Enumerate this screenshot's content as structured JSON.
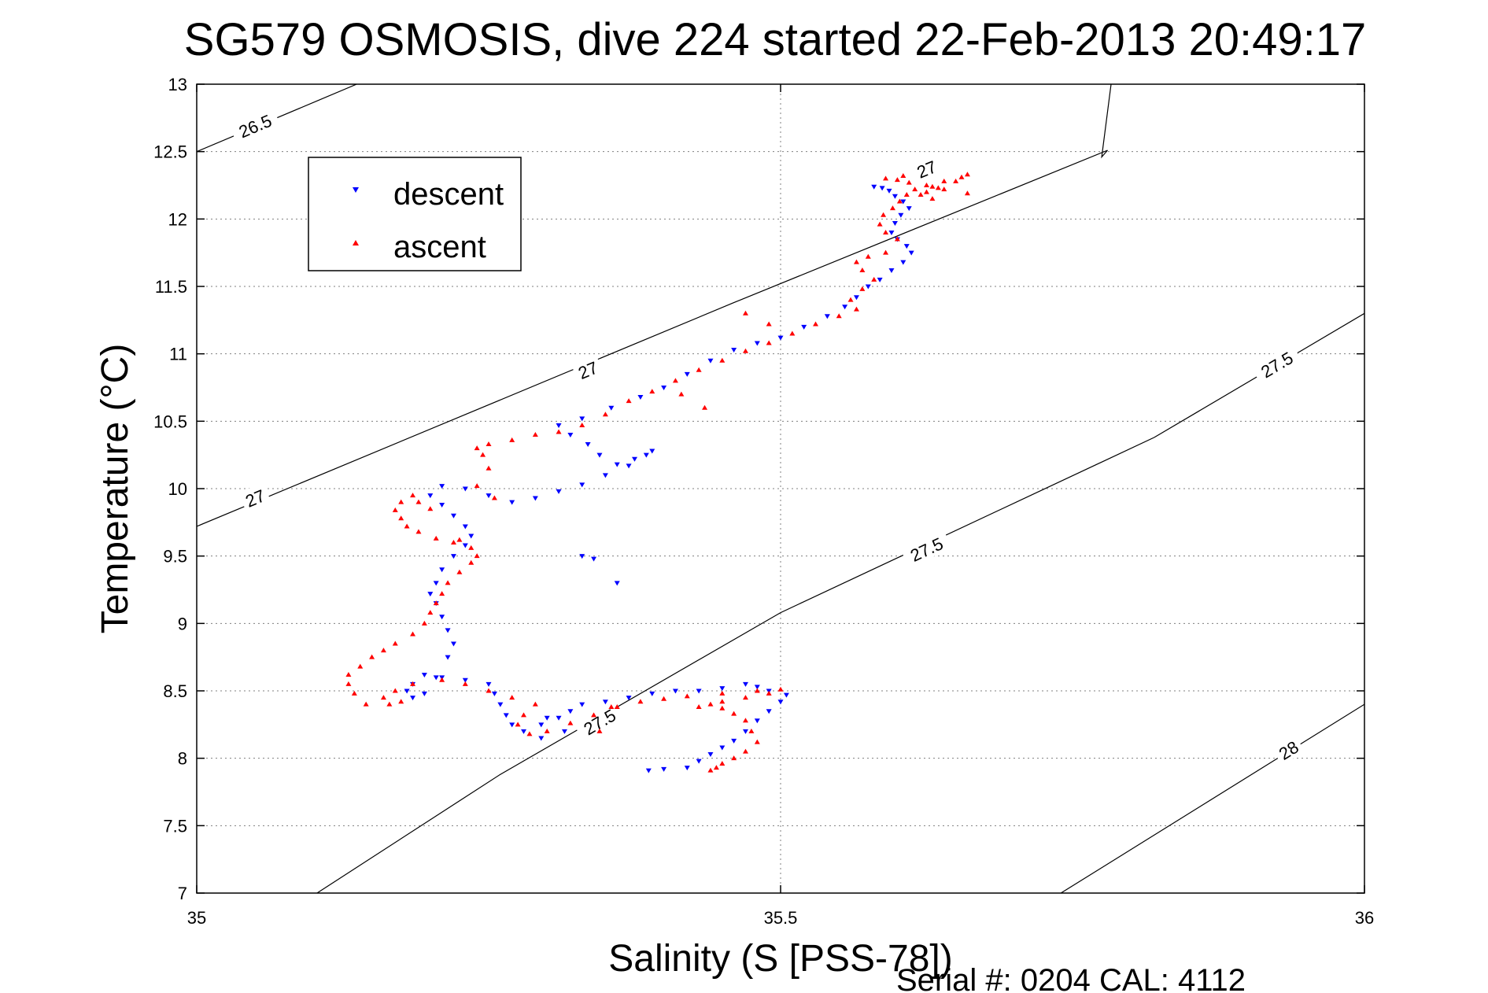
{
  "chart_data": {
    "type": "scatter",
    "title": "SG579 OSMOSIS, dive 224 started 22-Feb-2013 20:49:17",
    "xlabel": "Salinity (S [PSS-78])",
    "ylabel": "Temperature (°C)",
    "xlim": [
      35,
      36
    ],
    "ylim": [
      7,
      13
    ],
    "xticks": [
      35,
      35.5,
      36
    ],
    "xtick_labels": [
      "35",
      "35.5",
      "36"
    ],
    "yticks": [
      7,
      7.5,
      8,
      8.5,
      9,
      9.5,
      10,
      10.5,
      11,
      11.5,
      12,
      12.5,
      13
    ],
    "ytick_labels": [
      "7",
      "7.5",
      "8",
      "8.5",
      "9",
      "9.5",
      "10",
      "10.5",
      "11",
      "11.5",
      "12",
      "12.5",
      "13"
    ],
    "grid": true,
    "legend_position": "top-left",
    "colors": {
      "descent": "#0000ff",
      "ascent": "#ff0000",
      "contour": "#000000",
      "grid": "#7f7f7f"
    },
    "footer": "Serial #: 0204  CAL: 4112",
    "contours": [
      {
        "level": "26.5",
        "points": [
          [
            35.0,
            12.5
          ],
          [
            35.137,
            13.0
          ]
        ],
        "labels": [
          {
            "x": 35.05,
            "y": 12.69,
            "text": "26.5"
          }
        ]
      },
      {
        "level": "27",
        "points": [
          [
            35.0,
            9.72
          ],
          [
            35.46,
            11.38
          ],
          [
            35.78,
            12.51
          ],
          [
            35.775,
            12.46
          ],
          [
            35.783,
            13.0
          ]
        ],
        "labels": [
          {
            "x": 35.05,
            "y": 9.93,
            "text": "27"
          },
          {
            "x": 35.335,
            "y": 10.88,
            "text": "27"
          },
          {
            "x": 35.625,
            "y": 12.37,
            "text": "27"
          }
        ]
      },
      {
        "level": "27.5",
        "points": [
          [
            35.103,
            7.0
          ],
          [
            35.26,
            7.88
          ],
          [
            35.5,
            9.08
          ],
          [
            35.82,
            10.38
          ],
          [
            36.0,
            11.3
          ]
        ],
        "labels": [
          {
            "x": 35.345,
            "y": 8.27,
            "text": "27.5"
          },
          {
            "x": 35.625,
            "y": 9.55,
            "text": "27.5"
          },
          {
            "x": 35.925,
            "y": 10.92,
            "text": "27.5"
          }
        ]
      },
      {
        "level": "28",
        "points": [
          [
            35.74,
            7.0
          ],
          [
            36.0,
            8.4
          ]
        ],
        "labels": [
          {
            "x": 35.935,
            "y": 8.06,
            "text": "28"
          }
        ]
      }
    ],
    "series": [
      {
        "name": "descent",
        "marker": "triangle-down",
        "points": [
          [
            35.387,
            7.91
          ],
          [
            35.4,
            7.92
          ],
          [
            35.42,
            7.93
          ],
          [
            35.43,
            7.98
          ],
          [
            35.44,
            8.03
          ],
          [
            35.45,
            8.08
          ],
          [
            35.46,
            8.13
          ],
          [
            35.47,
            8.2
          ],
          [
            35.48,
            8.28
          ],
          [
            35.49,
            8.35
          ],
          [
            35.5,
            8.42
          ],
          [
            35.505,
            8.47
          ],
          [
            35.49,
            8.5
          ],
          [
            35.48,
            8.53
          ],
          [
            35.47,
            8.55
          ],
          [
            35.45,
            8.52
          ],
          [
            35.43,
            8.5
          ],
          [
            35.41,
            8.5
          ],
          [
            35.39,
            8.48
          ],
          [
            35.37,
            8.45
          ],
          [
            35.35,
            8.42
          ],
          [
            35.33,
            8.4
          ],
          [
            35.32,
            8.35
          ],
          [
            35.31,
            8.3
          ],
          [
            35.295,
            8.25
          ],
          [
            35.28,
            8.2
          ],
          [
            35.27,
            8.25
          ],
          [
            35.265,
            8.32
          ],
          [
            35.26,
            8.4
          ],
          [
            35.255,
            8.48
          ],
          [
            35.25,
            8.55
          ],
          [
            35.23,
            8.58
          ],
          [
            35.21,
            8.6
          ],
          [
            35.195,
            8.62
          ],
          [
            35.185,
            8.55
          ],
          [
            35.18,
            8.5
          ],
          [
            35.185,
            8.45
          ],
          [
            35.195,
            8.48
          ],
          [
            35.205,
            8.6
          ],
          [
            35.215,
            8.75
          ],
          [
            35.22,
            8.85
          ],
          [
            35.215,
            8.95
          ],
          [
            35.21,
            9.05
          ],
          [
            35.205,
            9.15
          ],
          [
            35.2,
            9.22
          ],
          [
            35.205,
            9.3
          ],
          [
            35.21,
            9.4
          ],
          [
            35.22,
            9.5
          ],
          [
            35.23,
            9.58
          ],
          [
            35.235,
            9.65
          ],
          [
            35.23,
            9.72
          ],
          [
            35.22,
            9.8
          ],
          [
            35.21,
            9.88
          ],
          [
            35.2,
            9.95
          ],
          [
            35.21,
            10.02
          ],
          [
            35.23,
            10.0
          ],
          [
            35.25,
            9.95
          ],
          [
            35.27,
            9.9
          ],
          [
            35.29,
            9.93
          ],
          [
            35.31,
            9.98
          ],
          [
            35.33,
            10.03
          ],
          [
            35.35,
            10.1
          ],
          [
            35.37,
            10.17
          ],
          [
            35.385,
            10.25
          ],
          [
            35.39,
            10.28
          ],
          [
            35.375,
            10.22
          ],
          [
            35.36,
            10.18
          ],
          [
            35.345,
            10.25
          ],
          [
            35.335,
            10.33
          ],
          [
            35.32,
            10.4
          ],
          [
            35.31,
            10.47
          ],
          [
            35.33,
            10.52
          ],
          [
            35.355,
            10.6
          ],
          [
            35.38,
            10.68
          ],
          [
            35.4,
            10.75
          ],
          [
            35.42,
            10.85
          ],
          [
            35.44,
            10.95
          ],
          [
            35.46,
            11.03
          ],
          [
            35.48,
            11.08
          ],
          [
            35.5,
            11.12
          ],
          [
            35.52,
            11.2
          ],
          [
            35.54,
            11.28
          ],
          [
            35.555,
            11.35
          ],
          [
            35.565,
            11.42
          ],
          [
            35.575,
            11.5
          ],
          [
            35.585,
            11.55
          ],
          [
            35.595,
            11.62
          ],
          [
            35.605,
            11.68
          ],
          [
            35.612,
            11.75
          ],
          [
            35.608,
            11.8
          ],
          [
            35.6,
            11.85
          ],
          [
            35.595,
            11.9
          ],
          [
            35.598,
            11.97
          ],
          [
            35.603,
            12.03
          ],
          [
            35.61,
            12.08
          ],
          [
            35.605,
            12.13
          ],
          [
            35.598,
            12.17
          ],
          [
            35.593,
            12.21
          ],
          [
            35.587,
            12.23
          ],
          [
            35.58,
            12.24
          ],
          [
            35.36,
            9.3
          ],
          [
            35.33,
            9.5
          ],
          [
            35.34,
            9.48
          ],
          [
            35.295,
            8.15
          ],
          [
            35.315,
            8.2
          ],
          [
            35.3,
            8.3
          ]
        ]
      },
      {
        "name": "ascent",
        "marker": "triangle-up",
        "points": [
          [
            35.44,
            7.91
          ],
          [
            35.445,
            7.93
          ],
          [
            35.45,
            7.96
          ],
          [
            35.46,
            8.0
          ],
          [
            35.47,
            8.05
          ],
          [
            35.48,
            8.12
          ],
          [
            35.475,
            8.2
          ],
          [
            35.47,
            8.28
          ],
          [
            35.46,
            8.33
          ],
          [
            35.45,
            8.37
          ],
          [
            35.44,
            8.4
          ],
          [
            35.43,
            8.38
          ],
          [
            35.45,
            8.42
          ],
          [
            35.47,
            8.45
          ],
          [
            35.49,
            8.48
          ],
          [
            35.5,
            8.51
          ],
          [
            35.48,
            8.5
          ],
          [
            35.45,
            8.48
          ],
          [
            35.42,
            8.46
          ],
          [
            35.4,
            8.44
          ],
          [
            35.38,
            8.42
          ],
          [
            35.36,
            8.38
          ],
          [
            35.34,
            8.32
          ],
          [
            35.32,
            8.26
          ],
          [
            35.3,
            8.2
          ],
          [
            35.285,
            8.18
          ],
          [
            35.275,
            8.25
          ],
          [
            35.28,
            8.32
          ],
          [
            35.29,
            8.4
          ],
          [
            35.27,
            8.45
          ],
          [
            35.25,
            8.5
          ],
          [
            35.23,
            8.55
          ],
          [
            35.21,
            8.58
          ],
          [
            35.185,
            8.55
          ],
          [
            35.17,
            8.5
          ],
          [
            35.16,
            8.45
          ],
          [
            35.165,
            8.4
          ],
          [
            35.175,
            8.42
          ],
          [
            35.145,
            8.4
          ],
          [
            35.135,
            8.48
          ],
          [
            35.13,
            8.55
          ],
          [
            35.13,
            8.62
          ],
          [
            35.14,
            8.68
          ],
          [
            35.15,
            8.75
          ],
          [
            35.16,
            8.8
          ],
          [
            35.17,
            8.85
          ],
          [
            35.185,
            8.92
          ],
          [
            35.195,
            9.0
          ],
          [
            35.2,
            9.08
          ],
          [
            35.205,
            9.15
          ],
          [
            35.21,
            9.22
          ],
          [
            35.215,
            9.3
          ],
          [
            35.225,
            9.38
          ],
          [
            35.235,
            9.45
          ],
          [
            35.24,
            9.5
          ],
          [
            35.235,
            9.56
          ],
          [
            35.22,
            9.6
          ],
          [
            35.205,
            9.63
          ],
          [
            35.19,
            9.68
          ],
          [
            35.18,
            9.72
          ],
          [
            35.175,
            9.78
          ],
          [
            35.17,
            9.84
          ],
          [
            35.175,
            9.9
          ],
          [
            35.185,
            9.95
          ],
          [
            35.19,
            9.9
          ],
          [
            35.2,
            9.85
          ],
          [
            35.225,
            9.62
          ],
          [
            35.24,
            10.02
          ],
          [
            35.25,
            10.15
          ],
          [
            35.245,
            10.25
          ],
          [
            35.24,
            10.3
          ],
          [
            35.25,
            10.33
          ],
          [
            35.27,
            10.36
          ],
          [
            35.29,
            10.4
          ],
          [
            35.31,
            10.42
          ],
          [
            35.33,
            10.47
          ],
          [
            35.35,
            10.55
          ],
          [
            35.37,
            10.65
          ],
          [
            35.39,
            10.72
          ],
          [
            35.41,
            10.8
          ],
          [
            35.43,
            10.88
          ],
          [
            35.45,
            10.95
          ],
          [
            35.47,
            11.02
          ],
          [
            35.49,
            11.08
          ],
          [
            35.51,
            11.15
          ],
          [
            35.53,
            11.22
          ],
          [
            35.55,
            11.28
          ],
          [
            35.565,
            11.33
          ],
          [
            35.56,
            11.4
          ],
          [
            35.57,
            11.48
          ],
          [
            35.58,
            11.55
          ],
          [
            35.57,
            11.62
          ],
          [
            35.565,
            11.68
          ],
          [
            35.575,
            11.72
          ],
          [
            35.59,
            11.75
          ],
          [
            35.6,
            11.85
          ],
          [
            35.59,
            11.9
          ],
          [
            35.585,
            11.96
          ],
          [
            35.588,
            12.03
          ],
          [
            35.596,
            12.08
          ],
          [
            35.602,
            12.13
          ],
          [
            35.608,
            12.18
          ],
          [
            35.615,
            12.22
          ],
          [
            35.625,
            12.25
          ],
          [
            35.64,
            12.28
          ],
          [
            35.655,
            12.31
          ],
          [
            35.66,
            12.33
          ],
          [
            35.65,
            12.28
          ],
          [
            35.635,
            12.23
          ],
          [
            35.625,
            12.2
          ],
          [
            35.62,
            12.18
          ],
          [
            35.63,
            12.15
          ],
          [
            35.64,
            12.22
          ],
          [
            35.63,
            12.24
          ],
          [
            35.61,
            12.27
          ],
          [
            35.6,
            12.29
          ],
          [
            35.59,
            12.3
          ],
          [
            35.605,
            12.32
          ],
          [
            35.66,
            12.19
          ],
          [
            35.49,
            11.22
          ],
          [
            35.47,
            11.3
          ],
          [
            35.435,
            10.6
          ],
          [
            35.415,
            10.7
          ],
          [
            35.255,
            9.93
          ],
          [
            35.345,
            8.2
          ],
          [
            35.355,
            8.38
          ]
        ]
      }
    ]
  }
}
